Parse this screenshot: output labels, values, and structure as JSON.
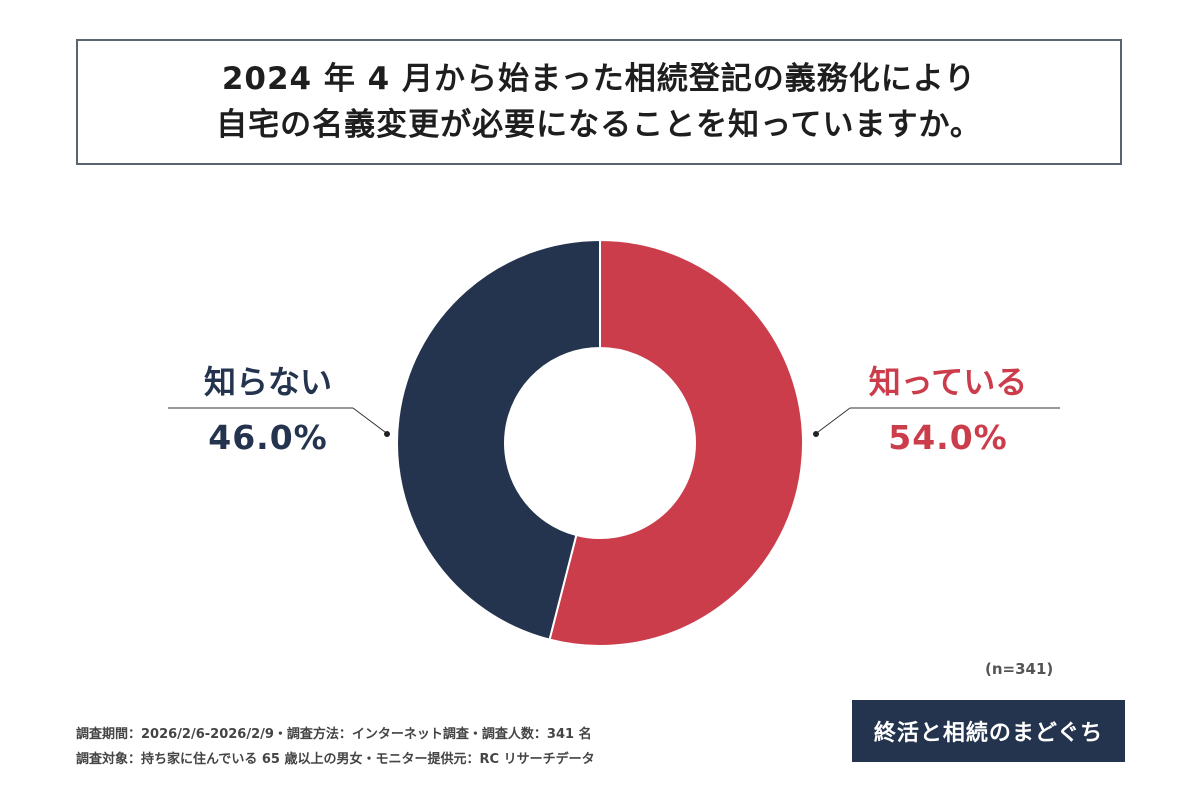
{
  "title": {
    "line1": "2024 年 4 月から始まった相続登記の義務化により",
    "line2": "自宅の名義変更が必要になることを知っていますか。"
  },
  "chart_data": {
    "type": "pie",
    "donut": true,
    "categories": [
      "知っている",
      "知らない"
    ],
    "values": [
      54.0,
      46.0
    ],
    "labels": [
      "54.0%",
      "46.0%"
    ],
    "colors": [
      "#cc3d4c",
      "#24344e"
    ]
  },
  "sample_size": "(n=341)",
  "footer": {
    "line1": "調査期間：2026/2/6-2026/2/9・調査方法：インターネット調査・調査人数：341 名",
    "line2": "調査対象：持ち家に住んでいる 65 歳以上の男女・モニター提供元：RC リサーチデータ"
  },
  "logo_text": "終活と相続のまどぐち"
}
